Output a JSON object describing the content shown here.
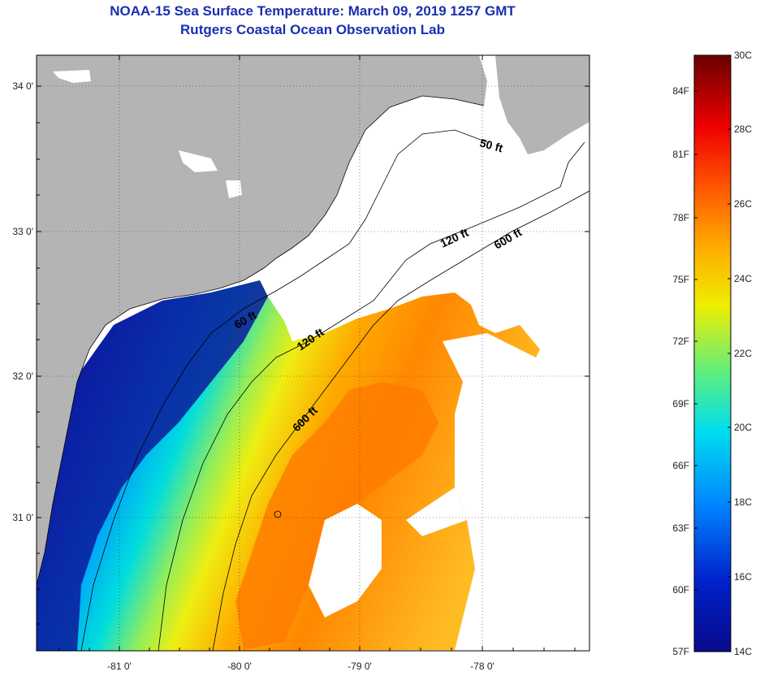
{
  "header": {
    "title_line1": "NOAA-15 Sea Surface Temperature:  March 09, 2019 1257 GMT",
    "title_line2": "Rutgers Coastal Ocean Observation Lab"
  },
  "map": {
    "lat_labels": [
      "34 0'",
      "33 0'",
      "32 0'",
      "31 0'"
    ],
    "lon_labels": [
      "-81 0'",
      "-80 0'",
      "-79 0'",
      "-78 0'"
    ],
    "contours": [
      "50 ft",
      "120 ft",
      "600 ft",
      "60 ft",
      "120 ft",
      "600 ft"
    ]
  },
  "colorbar": {
    "fahrenheit_labels": [
      "84F",
      "81F",
      "78F",
      "75F",
      "72F",
      "69F",
      "66F",
      "63F",
      "60F",
      "57F"
    ],
    "celsius_labels": [
      "30C",
      "28C",
      "26C",
      "24C",
      "22C",
      "20C",
      "18C",
      "16C",
      "14C"
    ]
  },
  "colors": {
    "land": "#b4b4b4",
    "title": "#1a2fb0",
    "scale": [
      "#0a0a8a",
      "#0033dd",
      "#0099ff",
      "#00e5e5",
      "#66ee66",
      "#eeee00",
      "#ffaa00",
      "#ff5500",
      "#dd0000",
      "#7a0000"
    ]
  }
}
